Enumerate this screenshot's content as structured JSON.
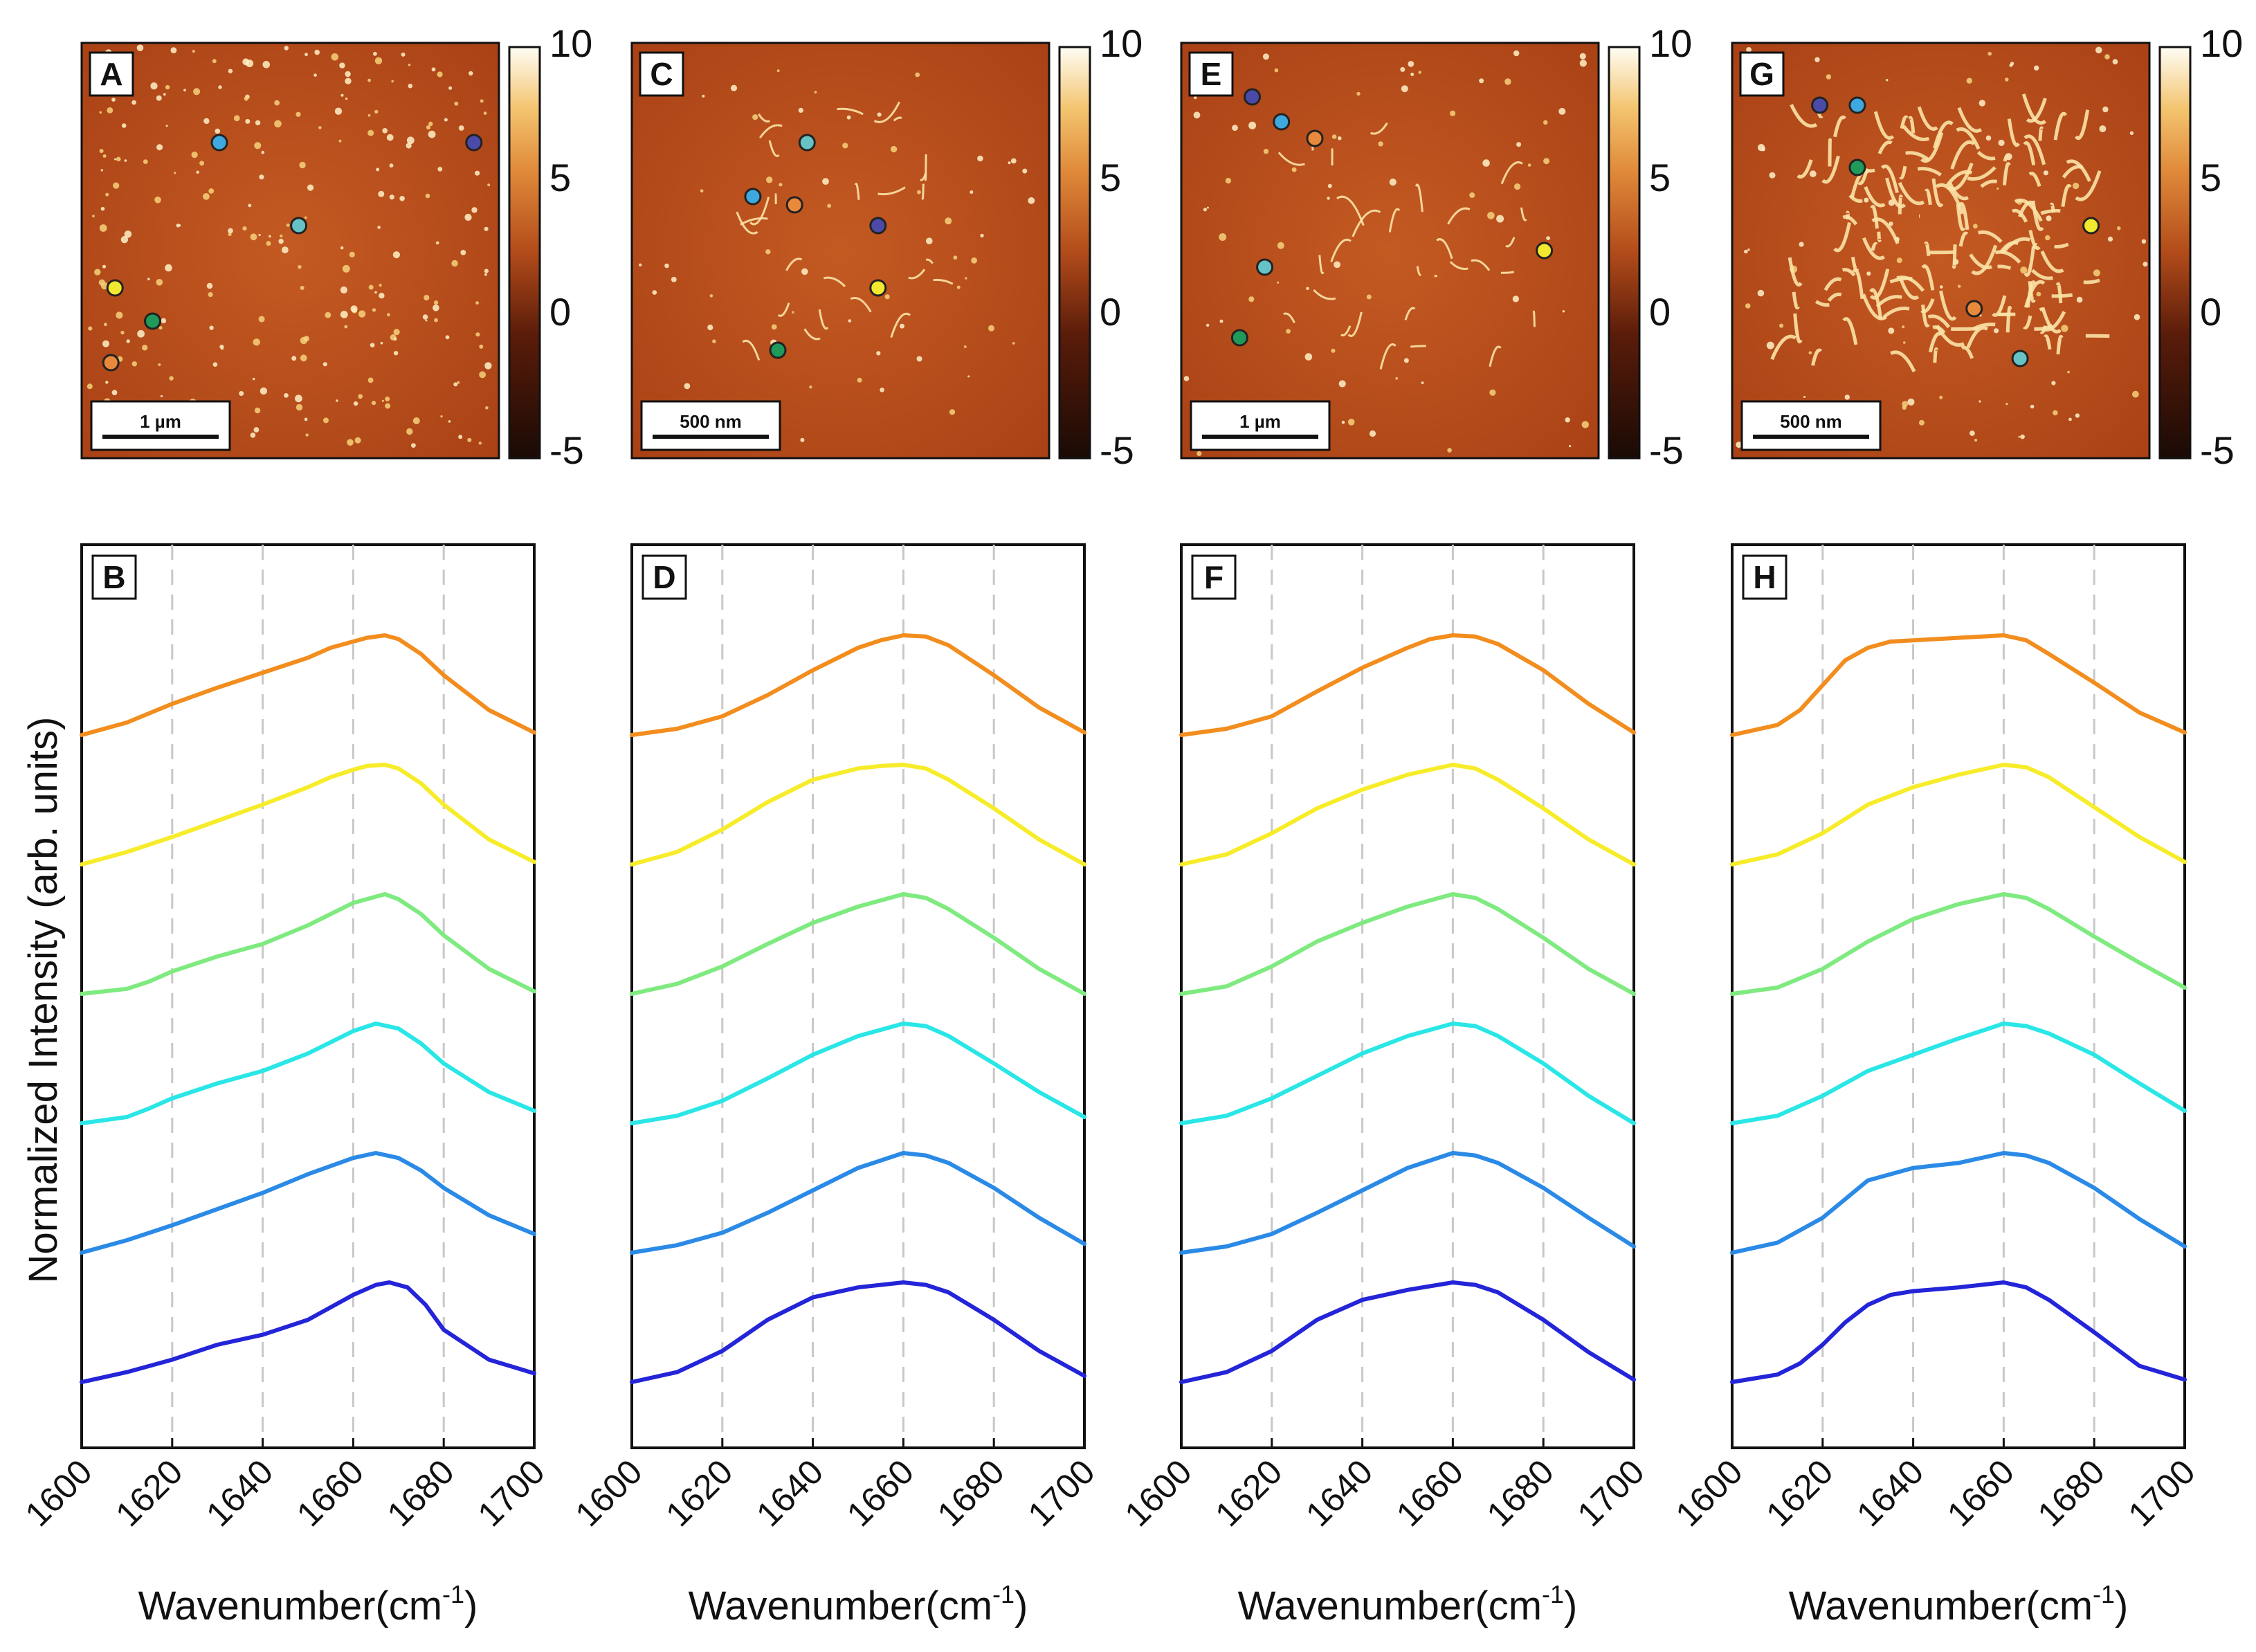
{
  "ylabel": "Normalized Intensity (arb. units)",
  "chart_data": [
    {
      "type": "line",
      "panel_label": "B",
      "image_label": "A",
      "scalebar": "1 µm",
      "colorbar_ticks": [
        "10",
        "5",
        "0",
        "-5"
      ],
      "xlabel": "Wavenumber(cm⁻¹)",
      "xlabel_base": "Wavenumber(cm",
      "xlabel_sup": "-1",
      "xlabel_close": ")",
      "xlim": [
        1600,
        1700
      ],
      "xticks": [
        1600,
        1620,
        1640,
        1660,
        1680,
        1700
      ],
      "gridlines_x": [
        1620,
        1640,
        1660,
        1680
      ],
      "spot_markers": [
        {
          "color": "#3fa9df",
          "x": 0.33,
          "y": 0.24
        },
        {
          "color": "#4b4aa8",
          "x": 0.94,
          "y": 0.24
        },
        {
          "color": "#66c2c4",
          "x": 0.52,
          "y": 0.44
        },
        {
          "color": "#f2e830",
          "x": 0.08,
          "y": 0.59
        },
        {
          "color": "#1f9a5a",
          "x": 0.17,
          "y": 0.67
        },
        {
          "color": "#e8893b",
          "x": 0.07,
          "y": 0.77
        }
      ],
      "series": [
        {
          "name": "orange",
          "color": "#f28d1e",
          "x": [
            1600,
            1610,
            1620,
            1630,
            1640,
            1650,
            1655,
            1660,
            1663,
            1667,
            1670,
            1675,
            1680,
            1690,
            1700
          ],
          "y": [
            0.2,
            0.3,
            0.45,
            0.58,
            0.7,
            0.82,
            0.9,
            0.95,
            0.98,
            1.0,
            0.97,
            0.85,
            0.68,
            0.4,
            0.22
          ]
        },
        {
          "name": "yellow",
          "color": "#f7ec2a",
          "x": [
            1600,
            1610,
            1620,
            1630,
            1640,
            1650,
            1655,
            1660,
            1663,
            1667,
            1670,
            1675,
            1680,
            1690,
            1700
          ],
          "y": [
            0.2,
            0.3,
            0.42,
            0.55,
            0.68,
            0.82,
            0.9,
            0.96,
            0.99,
            1.0,
            0.97,
            0.85,
            0.68,
            0.4,
            0.22
          ]
        },
        {
          "name": "green",
          "color": "#7eea7f",
          "x": [
            1600,
            1610,
            1615,
            1620,
            1630,
            1640,
            1650,
            1660,
            1667,
            1670,
            1675,
            1680,
            1690,
            1700
          ],
          "y": [
            0.2,
            0.24,
            0.3,
            0.38,
            0.5,
            0.6,
            0.75,
            0.93,
            1.0,
            0.96,
            0.84,
            0.67,
            0.4,
            0.22
          ]
        },
        {
          "name": "cyan",
          "color": "#2ae6e6",
          "x": [
            1600,
            1610,
            1615,
            1620,
            1630,
            1640,
            1650,
            1660,
            1665,
            1670,
            1675,
            1680,
            1690,
            1700
          ],
          "y": [
            0.2,
            0.25,
            0.32,
            0.4,
            0.52,
            0.62,
            0.76,
            0.94,
            1.0,
            0.96,
            0.84,
            0.68,
            0.45,
            0.3
          ]
        },
        {
          "name": "sky-blue",
          "color": "#2b8ae6",
          "x": [
            1600,
            1610,
            1620,
            1630,
            1640,
            1650,
            1660,
            1665,
            1670,
            1675,
            1680,
            1690,
            1700
          ],
          "y": [
            0.2,
            0.3,
            0.42,
            0.55,
            0.68,
            0.83,
            0.96,
            1.0,
            0.96,
            0.86,
            0.72,
            0.5,
            0.35
          ]
        },
        {
          "name": "blue",
          "color": "#2424d8",
          "x": [
            1600,
            1610,
            1620,
            1630,
            1640,
            1650,
            1660,
            1665,
            1668,
            1672,
            1676,
            1680,
            1690,
            1700
          ],
          "y": [
            0.2,
            0.28,
            0.38,
            0.5,
            0.58,
            0.7,
            0.9,
            0.98,
            1.0,
            0.96,
            0.82,
            0.62,
            0.38,
            0.27
          ]
        }
      ]
    },
    {
      "type": "line",
      "panel_label": "D",
      "image_label": "C",
      "scalebar": "500 nm",
      "colorbar_ticks": [
        "10",
        "5",
        "0",
        "-5"
      ],
      "xlabel": "Wavenumber(cm⁻¹)",
      "xlabel_base": "Wavenumber(cm",
      "xlabel_sup": "-1",
      "xlabel_close": ")",
      "xlim": [
        1600,
        1700
      ],
      "xticks": [
        1600,
        1620,
        1640,
        1660,
        1680,
        1700
      ],
      "gridlines_x": [
        1620,
        1640,
        1660,
        1680
      ],
      "spot_markers": [
        {
          "color": "#66c2c4",
          "x": 0.42,
          "y": 0.24
        },
        {
          "color": "#3fa9df",
          "x": 0.29,
          "y": 0.37
        },
        {
          "color": "#e8893b",
          "x": 0.39,
          "y": 0.39
        },
        {
          "color": "#4b4aa8",
          "x": 0.59,
          "y": 0.44
        },
        {
          "color": "#f2e830",
          "x": 0.59,
          "y": 0.59
        },
        {
          "color": "#1f9a5a",
          "x": 0.35,
          "y": 0.74
        }
      ],
      "series": [
        {
          "name": "orange",
          "color": "#f28d1e",
          "x": [
            1600,
            1610,
            1620,
            1630,
            1640,
            1650,
            1655,
            1660,
            1665,
            1670,
            1680,
            1690,
            1700
          ],
          "y": [
            0.2,
            0.25,
            0.35,
            0.52,
            0.72,
            0.9,
            0.96,
            1.0,
            0.99,
            0.92,
            0.68,
            0.42,
            0.22
          ]
        },
        {
          "name": "yellow",
          "color": "#f7ec2a",
          "x": [
            1600,
            1610,
            1620,
            1630,
            1640,
            1650,
            1655,
            1660,
            1665,
            1670,
            1680,
            1690,
            1700
          ],
          "y": [
            0.2,
            0.3,
            0.48,
            0.7,
            0.88,
            0.97,
            0.99,
            1.0,
            0.97,
            0.88,
            0.65,
            0.4,
            0.2
          ]
        },
        {
          "name": "green",
          "color": "#7eea7f",
          "x": [
            1600,
            1610,
            1620,
            1630,
            1640,
            1650,
            1660,
            1665,
            1670,
            1680,
            1690,
            1700
          ],
          "y": [
            0.2,
            0.28,
            0.42,
            0.6,
            0.77,
            0.9,
            1.0,
            0.97,
            0.88,
            0.65,
            0.4,
            0.2
          ]
        },
        {
          "name": "cyan",
          "color": "#2ae6e6",
          "x": [
            1600,
            1610,
            1620,
            1630,
            1640,
            1650,
            1660,
            1665,
            1670,
            1680,
            1690,
            1700
          ],
          "y": [
            0.2,
            0.26,
            0.38,
            0.56,
            0.75,
            0.9,
            1.0,
            0.98,
            0.9,
            0.68,
            0.45,
            0.25
          ]
        },
        {
          "name": "sky-blue",
          "color": "#2b8ae6",
          "x": [
            1600,
            1610,
            1620,
            1630,
            1640,
            1650,
            1660,
            1665,
            1670,
            1680,
            1690,
            1700
          ],
          "y": [
            0.2,
            0.26,
            0.36,
            0.52,
            0.7,
            0.88,
            1.0,
            0.98,
            0.92,
            0.72,
            0.48,
            0.27
          ]
        },
        {
          "name": "blue",
          "color": "#2424d8",
          "x": [
            1600,
            1610,
            1620,
            1630,
            1640,
            1650,
            1660,
            1665,
            1670,
            1680,
            1690,
            1700
          ],
          "y": [
            0.2,
            0.28,
            0.45,
            0.7,
            0.88,
            0.96,
            1.0,
            0.98,
            0.92,
            0.7,
            0.45,
            0.25
          ]
        }
      ]
    },
    {
      "type": "line",
      "panel_label": "F",
      "image_label": "E",
      "scalebar": "1 µm",
      "colorbar_ticks": [
        "10",
        "5",
        "0",
        "-5"
      ],
      "xlabel": "Wavenumber(cm⁻¹)",
      "xlabel_base": "Wavenumber(cm",
      "xlabel_sup": "-1",
      "xlabel_close": ")",
      "xlim": [
        1600,
        1700
      ],
      "xticks": [
        1600,
        1620,
        1640,
        1660,
        1680,
        1700
      ],
      "gridlines_x": [
        1620,
        1640,
        1660,
        1680
      ],
      "spot_markers": [
        {
          "color": "#4b4aa8",
          "x": 0.17,
          "y": 0.13
        },
        {
          "color": "#3fa9df",
          "x": 0.24,
          "y": 0.19
        },
        {
          "color": "#e8893b",
          "x": 0.32,
          "y": 0.23
        },
        {
          "color": "#f2e830",
          "x": 0.87,
          "y": 0.5
        },
        {
          "color": "#66c2c4",
          "x": 0.2,
          "y": 0.54
        },
        {
          "color": "#1f9a5a",
          "x": 0.14,
          "y": 0.71
        }
      ],
      "series": [
        {
          "name": "orange",
          "color": "#f28d1e",
          "x": [
            1600,
            1610,
            1620,
            1630,
            1640,
            1650,
            1655,
            1660,
            1665,
            1670,
            1680,
            1690,
            1700
          ],
          "y": [
            0.2,
            0.25,
            0.35,
            0.55,
            0.74,
            0.9,
            0.97,
            1.0,
            0.99,
            0.93,
            0.72,
            0.45,
            0.22
          ]
        },
        {
          "name": "yellow",
          "color": "#f7ec2a",
          "x": [
            1600,
            1610,
            1620,
            1630,
            1640,
            1650,
            1660,
            1665,
            1670,
            1680,
            1690,
            1700
          ],
          "y": [
            0.2,
            0.28,
            0.45,
            0.65,
            0.8,
            0.92,
            1.0,
            0.97,
            0.88,
            0.65,
            0.4,
            0.2
          ]
        },
        {
          "name": "green",
          "color": "#7eea7f",
          "x": [
            1600,
            1610,
            1620,
            1630,
            1640,
            1650,
            1660,
            1665,
            1670,
            1680,
            1690,
            1700
          ],
          "y": [
            0.2,
            0.26,
            0.42,
            0.62,
            0.77,
            0.9,
            1.0,
            0.97,
            0.88,
            0.65,
            0.4,
            0.2
          ]
        },
        {
          "name": "cyan",
          "color": "#2ae6e6",
          "x": [
            1600,
            1610,
            1620,
            1630,
            1640,
            1650,
            1660,
            1665,
            1670,
            1680,
            1690,
            1700
          ],
          "y": [
            0.2,
            0.26,
            0.4,
            0.58,
            0.76,
            0.9,
            1.0,
            0.98,
            0.9,
            0.68,
            0.42,
            0.2
          ]
        },
        {
          "name": "sky-blue",
          "color": "#2b8ae6",
          "x": [
            1600,
            1610,
            1620,
            1630,
            1640,
            1650,
            1660,
            1665,
            1670,
            1680,
            1690,
            1700
          ],
          "y": [
            0.2,
            0.25,
            0.35,
            0.52,
            0.7,
            0.88,
            1.0,
            0.98,
            0.92,
            0.72,
            0.48,
            0.25
          ]
        },
        {
          "name": "blue",
          "color": "#2424d8",
          "x": [
            1600,
            1610,
            1620,
            1630,
            1640,
            1650,
            1660,
            1665,
            1670,
            1680,
            1690,
            1700
          ],
          "y": [
            0.2,
            0.28,
            0.45,
            0.7,
            0.86,
            0.94,
            1.0,
            0.98,
            0.92,
            0.7,
            0.44,
            0.22
          ]
        }
      ]
    },
    {
      "type": "line",
      "panel_label": "H",
      "image_label": "G",
      "scalebar": "500 nm",
      "colorbar_ticks": [
        "10",
        "5",
        "0",
        "-5"
      ],
      "xlabel": "Wavenumber(cm⁻¹)",
      "xlabel_base": "Wavenumber(cm",
      "xlabel_sup": "-1",
      "xlabel_close": ")",
      "xlim": [
        1600,
        1700
      ],
      "xticks": [
        1600,
        1620,
        1640,
        1660,
        1680,
        1700
      ],
      "gridlines_x": [
        1620,
        1640,
        1660,
        1680
      ],
      "spot_markers": [
        {
          "color": "#4b4aa8",
          "x": 0.21,
          "y": 0.15
        },
        {
          "color": "#3fa9df",
          "x": 0.3,
          "y": 0.15
        },
        {
          "color": "#1f9a5a",
          "x": 0.3,
          "y": 0.3
        },
        {
          "color": "#f2e830",
          "x": 0.86,
          "y": 0.44
        },
        {
          "color": "#e8893b",
          "x": 0.58,
          "y": 0.64
        },
        {
          "color": "#66c2c4",
          "x": 0.69,
          "y": 0.76
        }
      ],
      "series": [
        {
          "name": "orange",
          "color": "#f28d1e",
          "x": [
            1600,
            1610,
            1615,
            1620,
            1625,
            1630,
            1635,
            1640,
            1650,
            1660,
            1665,
            1670,
            1680,
            1690,
            1700
          ],
          "y": [
            0.2,
            0.28,
            0.4,
            0.6,
            0.8,
            0.9,
            0.95,
            0.96,
            0.98,
            1.0,
            0.96,
            0.85,
            0.62,
            0.38,
            0.22
          ]
        },
        {
          "name": "yellow",
          "color": "#f7ec2a",
          "x": [
            1600,
            1610,
            1620,
            1630,
            1640,
            1650,
            1660,
            1665,
            1670,
            1680,
            1690,
            1700
          ],
          "y": [
            0.2,
            0.28,
            0.45,
            0.68,
            0.82,
            0.92,
            1.0,
            0.98,
            0.9,
            0.66,
            0.42,
            0.22
          ]
        },
        {
          "name": "green",
          "color": "#7eea7f",
          "x": [
            1600,
            1610,
            1620,
            1630,
            1640,
            1650,
            1660,
            1665,
            1670,
            1680,
            1690,
            1700
          ],
          "y": [
            0.2,
            0.25,
            0.4,
            0.62,
            0.8,
            0.92,
            1.0,
            0.97,
            0.88,
            0.66,
            0.45,
            0.25
          ]
        },
        {
          "name": "cyan",
          "color": "#2ae6e6",
          "x": [
            1600,
            1610,
            1620,
            1630,
            1640,
            1650,
            1660,
            1665,
            1670,
            1680,
            1690,
            1700
          ],
          "y": [
            0.2,
            0.26,
            0.42,
            0.62,
            0.75,
            0.88,
            1.0,
            0.98,
            0.92,
            0.75,
            0.52,
            0.3
          ]
        },
        {
          "name": "sky-blue",
          "color": "#2b8ae6",
          "x": [
            1600,
            1610,
            1620,
            1630,
            1640,
            1650,
            1660,
            1665,
            1670,
            1680,
            1690,
            1700
          ],
          "y": [
            0.2,
            0.28,
            0.48,
            0.78,
            0.88,
            0.92,
            1.0,
            0.98,
            0.92,
            0.72,
            0.47,
            0.25
          ]
        },
        {
          "name": "blue",
          "color": "#2424d8",
          "x": [
            1600,
            1610,
            1615,
            1620,
            1625,
            1630,
            1635,
            1640,
            1650,
            1660,
            1665,
            1670,
            1680,
            1690,
            1700
          ],
          "y": [
            0.2,
            0.26,
            0.35,
            0.5,
            0.68,
            0.82,
            0.9,
            0.93,
            0.96,
            1.0,
            0.96,
            0.86,
            0.6,
            0.33,
            0.22
          ]
        }
      ]
    }
  ]
}
